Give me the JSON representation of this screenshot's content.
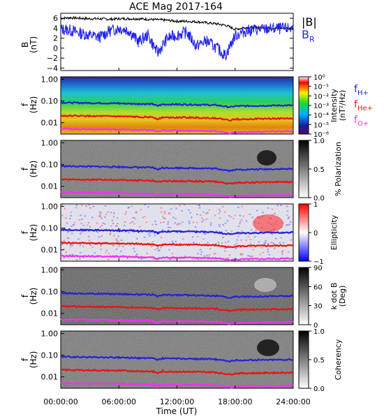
{
  "title": "ACE Mag 2017-164",
  "time_axis": {
    "label": "Time (UT)",
    "ticks": [
      "00:00:00",
      "06:00:00",
      "12:00:00",
      "18:00:00",
      "24:00:00"
    ],
    "range_hours": [
      0,
      24
    ]
  },
  "legend": {
    "B_total": "|B|",
    "B_R_main": "B",
    "B_R_sub": "R",
    "fH_main": "f",
    "fH_sub": "H+",
    "fHe_main": "f",
    "fHe_sub": "He+",
    "fO_main": "f",
    "fO_sub": "O+",
    "colors": {
      "B_total": "#000000",
      "B_R": "#2222ee",
      "fH": "#2222dd",
      "fHe": "#ee1111",
      "fO": "#ee33ee"
    }
  },
  "panels": [
    {
      "id": "b-field",
      "ylabel": "B",
      "yunit": "(nT)",
      "yticks": [
        "6",
        "4",
        "2",
        "0",
        "−2",
        "−4"
      ]
    },
    {
      "id": "intensity",
      "ylabel": "f",
      "yunit": "(Hz)",
      "yticks": [
        "1.00",
        "0.10",
        "0.01"
      ],
      "colorbar_label": "Intensity",
      "colorbar_unit": "(nT²/Hz)",
      "colorbar_ticks": [
        "10⁰",
        "10⁻¹",
        "10⁻²",
        "10⁻³",
        "10⁻⁴",
        "10⁻⁵",
        "10⁻⁶"
      ]
    },
    {
      "id": "polarization",
      "ylabel": "f",
      "yunit": "(Hz)",
      "yticks": [
        "1.00",
        "0.10",
        "0.01"
      ],
      "colorbar_label": "% Polarization",
      "colorbar_ticks": [
        "1.0",
        "0.5",
        "0.0"
      ]
    },
    {
      "id": "ellipticity",
      "ylabel": "f",
      "yunit": "(Hz)",
      "yticks": [
        "1.00",
        "0.10",
        "0.01"
      ],
      "colorbar_label": "Ellipticity",
      "colorbar_ticks": [
        "1",
        "0",
        "−1"
      ]
    },
    {
      "id": "kdotb",
      "ylabel": "f",
      "yunit": "(Hz)",
      "yticks": [
        "1.00",
        "0.10",
        "0.01"
      ],
      "colorbar_label": "k dot B",
      "colorbar_unit": "(Deg)",
      "colorbar_ticks": [
        "90",
        "60",
        "30",
        "0"
      ]
    },
    {
      "id": "coherency",
      "ylabel": "f",
      "yunit": "(Hz)",
      "yticks": [
        "1.00",
        "0.10",
        "0.01"
      ],
      "colorbar_label": "Coherency",
      "colorbar_ticks": [
        "1.0",
        "0.5",
        "0.0"
      ]
    }
  ],
  "chart_data": {
    "type": "line",
    "title": "ACE Mag 2017-164",
    "xlabel": "Time (UT)",
    "x_unit": "hours",
    "xlim": [
      0,
      24
    ],
    "b_field": {
      "ylabel": "B (nT)",
      "ylim": [
        -4.5,
        7
      ],
      "x": [
        0,
        1,
        2,
        3,
        4,
        5,
        6,
        7,
        8,
        9,
        10,
        11,
        12,
        13,
        14,
        15,
        16,
        17,
        18,
        19,
        20,
        21,
        22,
        23,
        24
      ],
      "series": [
        {
          "name": "|B|",
          "values": [
            6.0,
            6.1,
            6.0,
            5.9,
            5.9,
            5.8,
            5.9,
            5.9,
            5.9,
            5.8,
            5.7,
            5.6,
            5.4,
            5.4,
            5.3,
            5.1,
            4.9,
            4.6,
            3.8,
            4.1,
            4.2,
            4.1,
            4.0,
            4.0,
            4.0
          ]
        },
        {
          "name": "B_R",
          "values": [
            3.8,
            3.6,
            3.0,
            2.6,
            2.2,
            3.4,
            4.0,
            3.6,
            1.3,
            2.6,
            -1.0,
            2.0,
            2.6,
            3.2,
            0.4,
            1.5,
            0.2,
            -1.5,
            2.5,
            3.4,
            3.7,
            3.8,
            3.9,
            3.9,
            4.0
          ]
        }
      ]
    },
    "spectrogram_frequency": {
      "ylabel": "f (Hz)",
      "yscale": "log",
      "ylim": [
        0.003,
        1.3
      ],
      "x": [
        0,
        2,
        4,
        6,
        8,
        9.5,
        10,
        10.5,
        12,
        14,
        16,
        17.5,
        18,
        20,
        22,
        24
      ],
      "series": [
        {
          "name": "f_H+",
          "values": [
            0.085,
            0.082,
            0.08,
            0.078,
            0.074,
            0.072,
            0.06,
            0.07,
            0.07,
            0.068,
            0.065,
            0.052,
            0.058,
            0.06,
            0.062,
            0.063
          ]
        },
        {
          "name": "f_He+",
          "values": [
            0.021,
            0.0205,
            0.02,
            0.0195,
            0.0185,
            0.018,
            0.015,
            0.0175,
            0.0175,
            0.017,
            0.0163,
            0.013,
            0.0145,
            0.015,
            0.0155,
            0.0158
          ]
        },
        {
          "name": "f_O+",
          "values": [
            0.0053,
            0.0051,
            0.005,
            0.0049,
            0.0046,
            0.0045,
            0.0038,
            0.0044,
            0.0044,
            0.0043,
            0.0041,
            0.0033,
            0.0036,
            0.0038,
            0.0039,
            0.004
          ]
        }
      ]
    }
  }
}
